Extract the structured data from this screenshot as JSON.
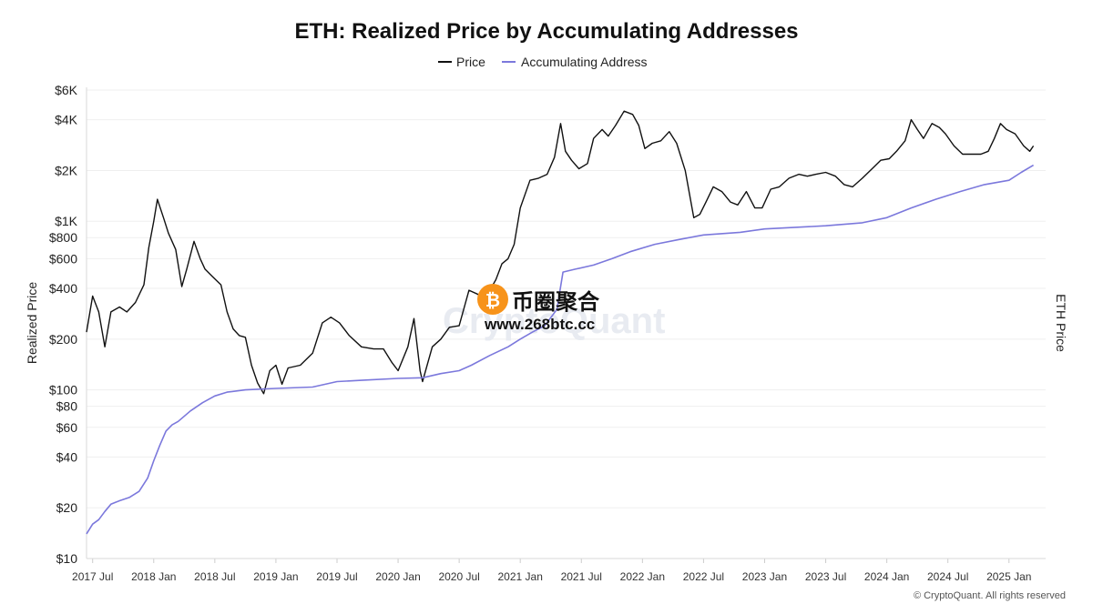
{
  "chart_data": {
    "type": "line",
    "title": "ETH: Realized Price by Accumulating Addresses",
    "ylabel": "Realized Price",
    "y2label": "ETH Price",
    "yscale": "log",
    "ylim": [
      10,
      6000
    ],
    "yticks": [
      {
        "value": 10,
        "label": "$10"
      },
      {
        "value": 20,
        "label": "$20"
      },
      {
        "value": 40,
        "label": "$40"
      },
      {
        "value": 60,
        "label": "$60"
      },
      {
        "value": 80,
        "label": "$80"
      },
      {
        "value": 100,
        "label": "$100"
      },
      {
        "value": 200,
        "label": "$200"
      },
      {
        "value": 400,
        "label": "$400"
      },
      {
        "value": 600,
        "label": "$600"
      },
      {
        "value": 800,
        "label": "$800"
      },
      {
        "value": 1000,
        "label": "$1K"
      },
      {
        "value": 2000,
        "label": "$2K"
      },
      {
        "value": 4000,
        "label": "$4K"
      },
      {
        "value": 6000,
        "label": "$6K"
      }
    ],
    "xlim": [
      2017.45,
      2025.3
    ],
    "xticks": [
      {
        "value": 2017.5,
        "label": "2017 Jul"
      },
      {
        "value": 2018.0,
        "label": "2018 Jan"
      },
      {
        "value": 2018.5,
        "label": "2018 Jul"
      },
      {
        "value": 2019.0,
        "label": "2019 Jan"
      },
      {
        "value": 2019.5,
        "label": "2019 Jul"
      },
      {
        "value": 2020.0,
        "label": "2020 Jan"
      },
      {
        "value": 2020.5,
        "label": "2020 Jul"
      },
      {
        "value": 2021.0,
        "label": "2021 Jan"
      },
      {
        "value": 2021.5,
        "label": "2021 Jul"
      },
      {
        "value": 2022.0,
        "label": "2022 Jan"
      },
      {
        "value": 2022.5,
        "label": "2022 Jul"
      },
      {
        "value": 2023.0,
        "label": "2023 Jan"
      },
      {
        "value": 2023.5,
        "label": "2023 Jul"
      },
      {
        "value": 2024.0,
        "label": "2024 Jan"
      },
      {
        "value": 2024.5,
        "label": "2024 Jul"
      },
      {
        "value": 2025.0,
        "label": "2025 Jan"
      }
    ],
    "legend_position": "top-center",
    "series": [
      {
        "name": "Price",
        "color": "#111111",
        "points": [
          [
            2017.45,
            220
          ],
          [
            2017.5,
            360
          ],
          [
            2017.55,
            290
          ],
          [
            2017.6,
            180
          ],
          [
            2017.65,
            290
          ],
          [
            2017.72,
            310
          ],
          [
            2017.78,
            290
          ],
          [
            2017.85,
            330
          ],
          [
            2017.92,
            420
          ],
          [
            2017.96,
            700
          ],
          [
            2018.0,
            1000
          ],
          [
            2018.03,
            1350
          ],
          [
            2018.08,
            1050
          ],
          [
            2018.12,
            850
          ],
          [
            2018.18,
            680
          ],
          [
            2018.23,
            410
          ],
          [
            2018.27,
            520
          ],
          [
            2018.33,
            760
          ],
          [
            2018.38,
            600
          ],
          [
            2018.42,
            520
          ],
          [
            2018.48,
            470
          ],
          [
            2018.55,
            420
          ],
          [
            2018.6,
            290
          ],
          [
            2018.65,
            230
          ],
          [
            2018.7,
            210
          ],
          [
            2018.75,
            205
          ],
          [
            2018.8,
            140
          ],
          [
            2018.85,
            110
          ],
          [
            2018.9,
            95
          ],
          [
            2018.95,
            130
          ],
          [
            2019.0,
            140
          ],
          [
            2019.05,
            108
          ],
          [
            2019.1,
            135
          ],
          [
            2019.2,
            140
          ],
          [
            2019.3,
            165
          ],
          [
            2019.38,
            250
          ],
          [
            2019.45,
            270
          ],
          [
            2019.52,
            250
          ],
          [
            2019.6,
            210
          ],
          [
            2019.7,
            180
          ],
          [
            2019.8,
            175
          ],
          [
            2019.88,
            175
          ],
          [
            2019.95,
            145
          ],
          [
            2020.0,
            130
          ],
          [
            2020.08,
            180
          ],
          [
            2020.13,
            265
          ],
          [
            2020.18,
            130
          ],
          [
            2020.2,
            112
          ],
          [
            2020.28,
            180
          ],
          [
            2020.35,
            200
          ],
          [
            2020.42,
            235
          ],
          [
            2020.5,
            240
          ],
          [
            2020.58,
            390
          ],
          [
            2020.65,
            370
          ],
          [
            2020.7,
            350
          ],
          [
            2020.75,
            390
          ],
          [
            2020.8,
            450
          ],
          [
            2020.85,
            560
          ],
          [
            2020.9,
            600
          ],
          [
            2020.95,
            730
          ],
          [
            2021.0,
            1200
          ],
          [
            2021.08,
            1750
          ],
          [
            2021.15,
            1800
          ],
          [
            2021.22,
            1900
          ],
          [
            2021.28,
            2400
          ],
          [
            2021.33,
            3800
          ],
          [
            2021.37,
            2600
          ],
          [
            2021.42,
            2300
          ],
          [
            2021.48,
            2050
          ],
          [
            2021.55,
            2200
          ],
          [
            2021.6,
            3100
          ],
          [
            2021.67,
            3500
          ],
          [
            2021.72,
            3200
          ],
          [
            2021.78,
            3700
          ],
          [
            2021.85,
            4500
          ],
          [
            2021.92,
            4300
          ],
          [
            2021.97,
            3700
          ],
          [
            2022.02,
            2700
          ],
          [
            2022.08,
            2900
          ],
          [
            2022.15,
            3000
          ],
          [
            2022.22,
            3400
          ],
          [
            2022.28,
            2900
          ],
          [
            2022.35,
            2000
          ],
          [
            2022.42,
            1050
          ],
          [
            2022.47,
            1100
          ],
          [
            2022.52,
            1300
          ],
          [
            2022.58,
            1600
          ],
          [
            2022.65,
            1500
          ],
          [
            2022.72,
            1300
          ],
          [
            2022.78,
            1250
          ],
          [
            2022.85,
            1500
          ],
          [
            2022.92,
            1200
          ],
          [
            2022.98,
            1200
          ],
          [
            2023.05,
            1550
          ],
          [
            2023.12,
            1600
          ],
          [
            2023.2,
            1800
          ],
          [
            2023.28,
            1900
          ],
          [
            2023.35,
            1850
          ],
          [
            2023.42,
            1900
          ],
          [
            2023.5,
            1950
          ],
          [
            2023.58,
            1850
          ],
          [
            2023.65,
            1650
          ],
          [
            2023.72,
            1600
          ],
          [
            2023.8,
            1800
          ],
          [
            2023.88,
            2050
          ],
          [
            2023.95,
            2300
          ],
          [
            2024.02,
            2350
          ],
          [
            2024.08,
            2600
          ],
          [
            2024.15,
            3000
          ],
          [
            2024.2,
            4000
          ],
          [
            2024.25,
            3500
          ],
          [
            2024.3,
            3100
          ],
          [
            2024.37,
            3800
          ],
          [
            2024.43,
            3600
          ],
          [
            2024.48,
            3300
          ],
          [
            2024.55,
            2800
          ],
          [
            2024.62,
            2500
          ],
          [
            2024.7,
            2500
          ],
          [
            2024.77,
            2500
          ],
          [
            2024.83,
            2600
          ],
          [
            2024.88,
            3100
          ],
          [
            2024.93,
            3800
          ],
          [
            2024.98,
            3500
          ],
          [
            2025.05,
            3300
          ],
          [
            2025.12,
            2800
          ],
          [
            2025.17,
            2600
          ],
          [
            2025.2,
            2800
          ]
        ]
      },
      {
        "name": "Accumulating Address",
        "color": "#7b78dc",
        "points": [
          [
            2017.45,
            14
          ],
          [
            2017.5,
            16
          ],
          [
            2017.55,
            17
          ],
          [
            2017.6,
            19
          ],
          [
            2017.65,
            21
          ],
          [
            2017.72,
            22
          ],
          [
            2017.8,
            23
          ],
          [
            2017.88,
            25
          ],
          [
            2017.95,
            30
          ],
          [
            2018.0,
            38
          ],
          [
            2018.05,
            47
          ],
          [
            2018.1,
            57
          ],
          [
            2018.15,
            62
          ],
          [
            2018.2,
            65
          ],
          [
            2018.3,
            75
          ],
          [
            2018.4,
            84
          ],
          [
            2018.5,
            92
          ],
          [
            2018.6,
            97
          ],
          [
            2018.75,
            100
          ],
          [
            2019.0,
            102
          ],
          [
            2019.3,
            104
          ],
          [
            2019.5,
            112
          ],
          [
            2019.7,
            114
          ],
          [
            2020.0,
            117
          ],
          [
            2020.2,
            118
          ],
          [
            2020.35,
            125
          ],
          [
            2020.5,
            130
          ],
          [
            2020.6,
            140
          ],
          [
            2020.75,
            160
          ],
          [
            2020.9,
            180
          ],
          [
            2021.0,
            200
          ],
          [
            2021.1,
            220
          ],
          [
            2021.2,
            240
          ],
          [
            2021.3,
            300
          ],
          [
            2021.35,
            500
          ],
          [
            2021.45,
            520
          ],
          [
            2021.6,
            550
          ],
          [
            2021.75,
            600
          ],
          [
            2021.9,
            660
          ],
          [
            2022.1,
            730
          ],
          [
            2022.3,
            780
          ],
          [
            2022.5,
            830
          ],
          [
            2022.8,
            860
          ],
          [
            2023.0,
            900
          ],
          [
            2023.5,
            940
          ],
          [
            2023.8,
            980
          ],
          [
            2024.0,
            1050
          ],
          [
            2024.2,
            1200
          ],
          [
            2024.4,
            1350
          ],
          [
            2024.6,
            1500
          ],
          [
            2024.8,
            1650
          ],
          [
            2025.0,
            1750
          ],
          [
            2025.1,
            1950
          ],
          [
            2025.2,
            2150
          ]
        ]
      }
    ]
  },
  "watermark": {
    "text": "CryptoQuant",
    "overlay_cn": "币圈聚合",
    "overlay_url": "www.268btc.cc",
    "coin_symbol": "₿"
  },
  "footer": {
    "copyright": "© CryptoQuant. All rights reserved"
  }
}
